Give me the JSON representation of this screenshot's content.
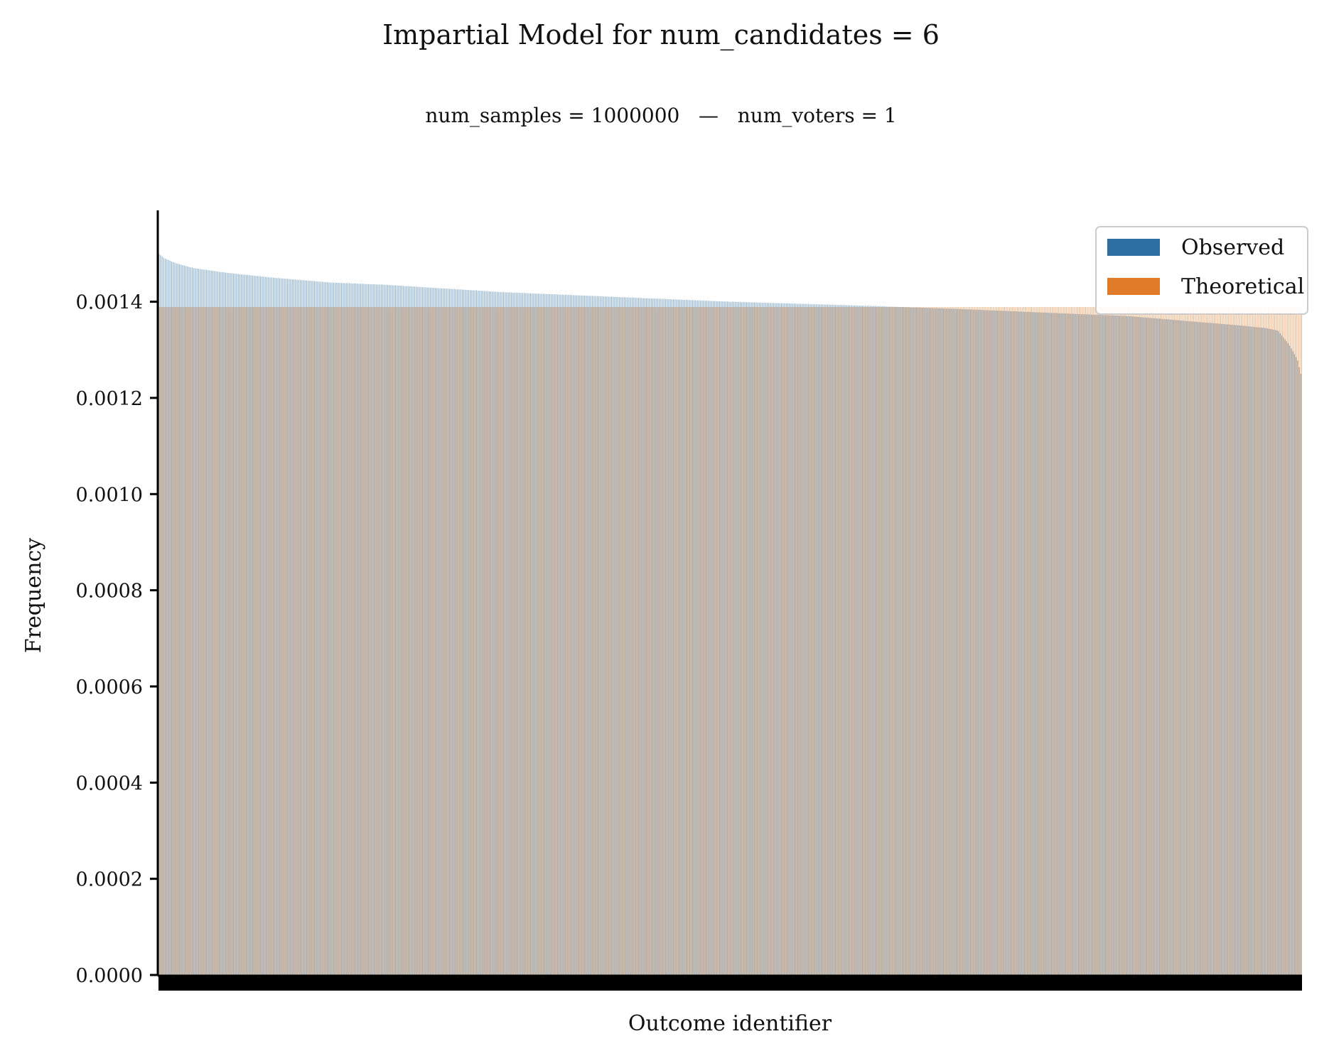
{
  "chart_data": {
    "type": "bar",
    "title": "Impartial Model for num_candidates = 6",
    "subtitle": "num_samples = 1000000   —   num_voters = 1",
    "xlabel": "Outcome identifier",
    "ylabel": "Frequency",
    "ylim": [
      0,
      0.00159
    ],
    "yticks": [
      "0.0000",
      "0.0002",
      "0.0004",
      "0.0006",
      "0.0008",
      "0.0010",
      "0.0012",
      "0.0014"
    ],
    "ytick_values": [
      0,
      0.0002,
      0.0004,
      0.0006,
      0.0008,
      0.001,
      0.0012,
      0.0014
    ],
    "num_outcomes": 720,
    "grid": false,
    "legend_position": "top-right",
    "series": [
      {
        "name": "Observed",
        "color": "#2e6fa3",
        "sorted": "descending",
        "profile": [
          [
            0,
            0.0015
          ],
          [
            0.005,
            0.00149
          ],
          [
            0.015,
            0.00148
          ],
          [
            0.03,
            0.00147
          ],
          [
            0.06,
            0.00146
          ],
          [
            0.1,
            0.00145
          ],
          [
            0.15,
            0.00144
          ],
          [
            0.2,
            0.001435
          ],
          [
            0.3,
            0.00142
          ],
          [
            0.4,
            0.00141
          ],
          [
            0.5,
            0.0014
          ],
          [
            0.6,
            0.001393
          ],
          [
            0.7,
            0.001385
          ],
          [
            0.8,
            0.001375
          ],
          [
            0.85,
            0.00137
          ],
          [
            0.9,
            0.00136
          ],
          [
            0.95,
            0.00135
          ],
          [
            0.97,
            0.001345
          ],
          [
            0.98,
            0.00134
          ],
          [
            0.99,
            0.00131
          ],
          [
            0.997,
            0.00128
          ],
          [
            1,
            0.00125
          ]
        ]
      },
      {
        "name": "Theoretical",
        "color": "#e07b2a",
        "value": 0.001389
      }
    ]
  }
}
